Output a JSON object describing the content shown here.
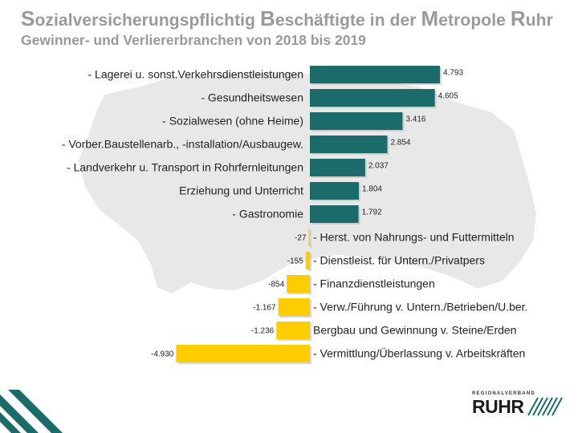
{
  "header": {
    "title_parts": [
      {
        "cap": "S",
        "rest": "ozialversicherungspflichtig "
      },
      {
        "cap": "B",
        "rest": "eschäftigte in der "
      },
      {
        "cap": "M",
        "rest": "etropole "
      },
      {
        "cap": "R",
        "rest": "uhr"
      }
    ],
    "subtitle": "Gewinner- und Verliererbranchen von 2018 bis 2019"
  },
  "logo": {
    "small_text": "REGIONALVERBAND",
    "main_text": "RUHR"
  },
  "colors": {
    "positive": "#1b6b6b",
    "negative": "#ffcc00",
    "map": "#e8e8e8",
    "title": "#9a9a9a"
  },
  "chart_data": {
    "type": "bar",
    "orientation": "horizontal",
    "categories": [
      "- Lagerei u. sonst.Verkehrsdienstleistungen",
      "- Gesundheitswesen",
      "- Sozialwesen (ohne Heime)",
      "- Vorber.Baustellenarb., -installation/Ausbaugew.",
      "- Landverkehr u. Transport in Rohrfernleitungen",
      "Erziehung und Unterricht",
      "- Gastronomie",
      "- Herst. von Nahrungs- und Futtermitteln",
      "- Dienstleist. für Untern./Privatpers",
      "- Finanzdienstleistungen",
      "- Verw./Führung v. Untern./Betrieben/U.ber.",
      "Bergbau und Gewinnung v. Steine/Erden",
      "- Vermittlung/Überlassung v. Arbeitskräften"
    ],
    "values": [
      4793,
      4605,
      3416,
      2854,
      2037,
      1804,
      1792,
      -27,
      -155,
      -854,
      -1167,
      -1236,
      -4930
    ],
    "value_labels": [
      "4.793",
      "4.605",
      "3.416",
      "2.854",
      "2.037",
      "1.804",
      "1.792",
      "-27",
      "-155",
      "-854",
      "-1.167",
      "-1.236",
      "-4.930"
    ],
    "xlim": [
      -5000,
      5000
    ],
    "grid": false,
    "legend": "none"
  }
}
